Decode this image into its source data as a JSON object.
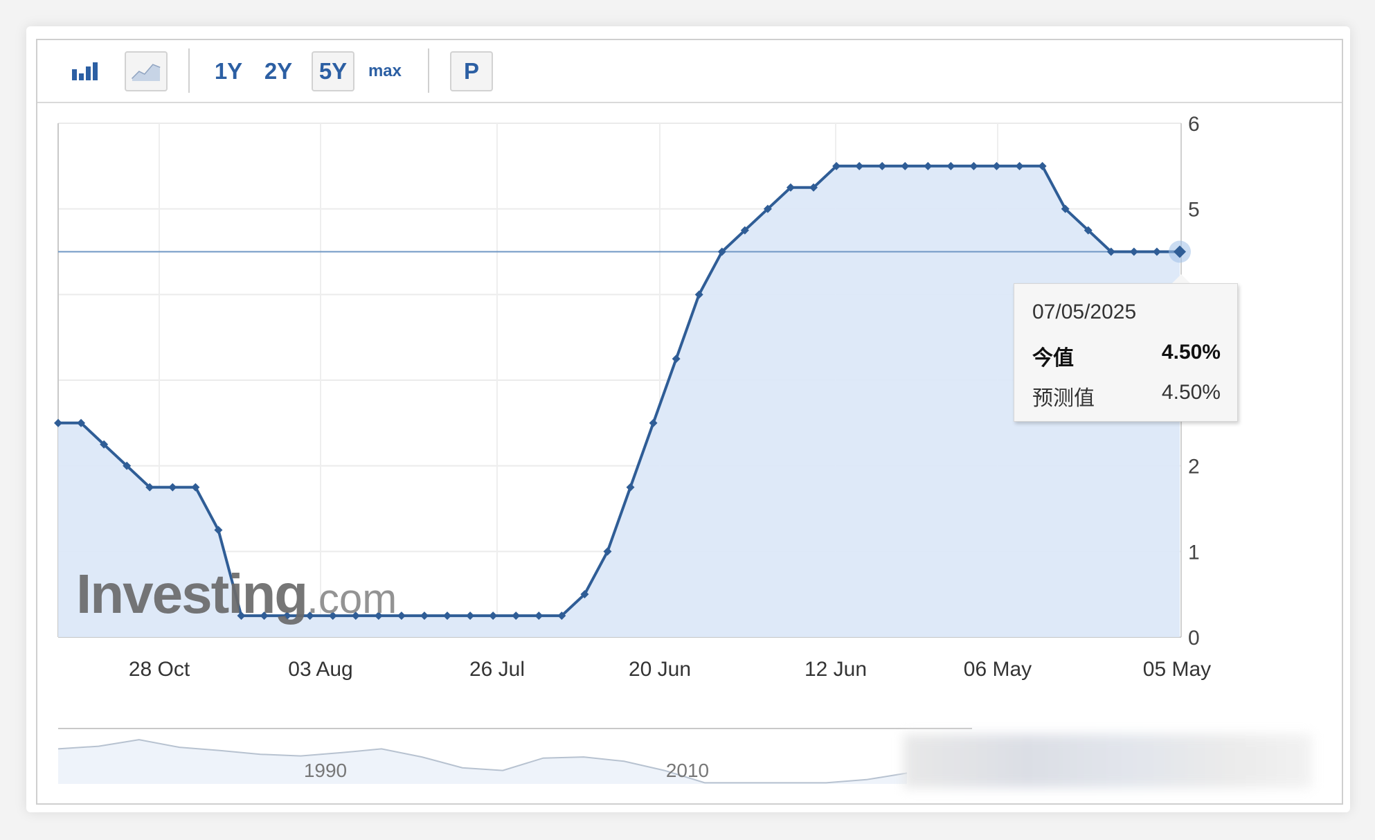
{
  "toolbar": {
    "range_buttons": [
      "1Y",
      "2Y",
      "5Y",
      "max"
    ],
    "active_range": "5Y",
    "p_button": "P",
    "icons": [
      "bar-chart-icon",
      "line-chart-icon"
    ]
  },
  "brand": {
    "name": "Investing",
    "suffix": ".com"
  },
  "tooltip": {
    "date": "07/05/2025",
    "row1_label": "今值",
    "row1_value": "4.50%",
    "row2_label": "预测值",
    "row2_value": "4.50%"
  },
  "colors": {
    "line": "#2f5d96",
    "area": "#dce8f8",
    "accent": "#2c5fa3"
  },
  "chart_data": {
    "type": "area",
    "title": "",
    "xlabel": "",
    "ylabel": "",
    "ylim": [
      0,
      6
    ],
    "y_ticks": [
      0,
      1,
      2,
      5,
      6
    ],
    "x_tick_labels": [
      "28 Oct",
      "03 Aug",
      "26 Jul",
      "20 Jun",
      "12 Jun",
      "06 May",
      "05 May"
    ],
    "grid": true,
    "series": [
      {
        "values": [
          2.5,
          2.5,
          2.25,
          2.0,
          1.75,
          1.75,
          1.75,
          1.25,
          0.25,
          0.25,
          0.25,
          0.25,
          0.25,
          0.25,
          0.25,
          0.25,
          0.25,
          0.25,
          0.25,
          0.25,
          0.25,
          0.25,
          0.25,
          0.5,
          1.0,
          1.75,
          2.5,
          3.25,
          4.0,
          4.5,
          4.75,
          5.0,
          5.25,
          5.25,
          5.5,
          5.5,
          5.5,
          5.5,
          5.5,
          5.5,
          5.5,
          5.5,
          5.5,
          5.5,
          5.0,
          4.75,
          4.5,
          4.5,
          4.5,
          4.5
        ]
      }
    ],
    "reference_line": 4.5,
    "highlight": {
      "date": "07/05/2025",
      "value": 4.5
    },
    "navigator": {
      "labels": [
        "1990",
        "2010"
      ],
      "values": [
        6.5,
        7.0,
        8.2,
        6.8,
        6.2,
        5.5,
        5.2,
        5.8,
        6.5,
        5.0,
        3.0,
        2.5,
        4.8,
        5.0,
        4.2,
        2.5,
        0.2,
        0.2,
        0.2,
        0.2,
        0.8,
        2.0
      ]
    }
  }
}
